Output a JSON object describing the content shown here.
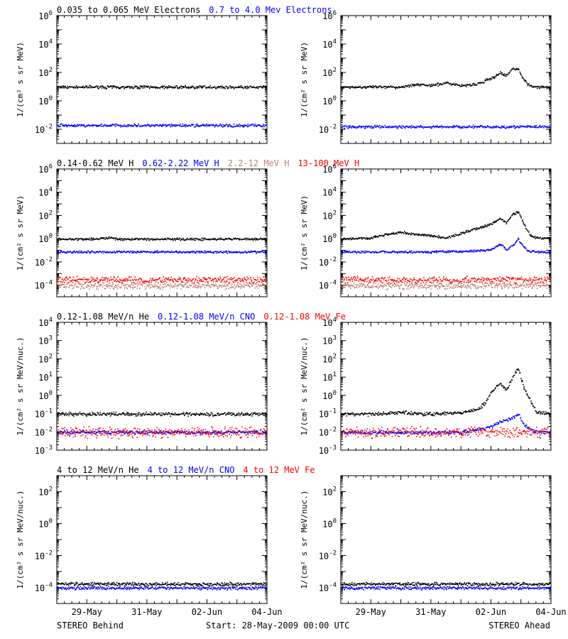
{
  "footer": {
    "left": "STEREO Behind",
    "center": "Start: 28-May-2009 00:00 UTC",
    "right": "STEREO Ahead"
  },
  "x_axis": {
    "range_days": [
      0,
      7
    ],
    "ticks": [
      {
        "label": "29-May",
        "day": 1.0
      },
      {
        "label": "31-May",
        "day": 3.0
      },
      {
        "label": "02-Jun",
        "day": 5.0
      },
      {
        "label": "04-Jun",
        "day": 7.0
      }
    ]
  },
  "rows": [
    {
      "titles": [
        {
          "text": "0.035 to 0.065 MeV Electrons",
          "color": "#000000"
        },
        {
          "text": "0.7 to 4.0 Mev Electrons",
          "color": "#0000ff"
        }
      ],
      "ylabel": "1/(cm² s sr MeV)",
      "ylog": [
        -3,
        6
      ],
      "yticks": [
        {
          "exp": "6"
        },
        {
          "exp": "4"
        },
        {
          "exp": "2"
        },
        {
          "exp": "0"
        },
        {
          "exp": "-2"
        }
      ]
    },
    {
      "titles": [
        {
          "text": "0.14-0.62 MeV H",
          "color": "#000000"
        },
        {
          "text": "0.62-2.22 MeV H",
          "color": "#0000ff"
        },
        {
          "text": "2.2-12 MeV H",
          "color": "#c08070"
        },
        {
          "text": "13-100 MeV H",
          "color": "#ff0000"
        }
      ],
      "ylabel": "1/(cm² s sr MeV)",
      "ylog": [
        -5,
        6
      ],
      "yticks": [
        {
          "exp": "6"
        },
        {
          "exp": "4"
        },
        {
          "exp": "2"
        },
        {
          "exp": "0"
        },
        {
          "exp": "-2"
        },
        {
          "exp": "-4"
        }
      ]
    },
    {
      "titles": [
        {
          "text": "0.12-1.08 MeV/n He",
          "color": "#000000"
        },
        {
          "text": "0.12-1.08 MeV/n CNO",
          "color": "#0000ff"
        },
        {
          "text": "0.12-1.08 MeV Fe",
          "color": "#ff0000"
        }
      ],
      "ylabel": "1/(cm² s sr MeV/nuc.)",
      "ylog": [
        -3,
        4
      ],
      "yticks": [
        {
          "exp": "4"
        },
        {
          "exp": "3"
        },
        {
          "exp": "2"
        },
        {
          "exp": "1"
        },
        {
          "exp": "0"
        },
        {
          "exp": "-1"
        },
        {
          "exp": "-2"
        },
        {
          "exp": "-3"
        }
      ]
    },
    {
      "titles": [
        {
          "text": "4 to 12 MeV/n He",
          "color": "#000000"
        },
        {
          "text": "4 to 12 MeV/n CNO",
          "color": "#0000ff"
        },
        {
          "text": "4 to 12 MeV Fe",
          "color": "#ff0000"
        }
      ],
      "ylabel": "1/(cm² s sr MeV/nuc.)",
      "ylog": [
        -5,
        3
      ],
      "yticks": [
        {
          "exp": "2"
        },
        {
          "exp": "0"
        },
        {
          "exp": "-2"
        },
        {
          "exp": "-4"
        }
      ]
    }
  ],
  "chart_data": [
    {
      "type": "scatter",
      "spacecraft": "STEREO Behind",
      "ylog": [
        -3,
        6
      ],
      "series": [
        {
          "name": "0.035 to 0.065 MeV Electrons",
          "color": "#000000",
          "x": [
            0,
            1,
            2,
            3,
            4,
            5,
            6,
            7
          ],
          "log10_y": [
            1.0,
            1.0,
            1.0,
            1.0,
            1.0,
            1.0,
            1.0,
            1.0
          ]
        },
        {
          "name": "0.7 to 4.0 Mev Electrons",
          "color": "#0000ff",
          "x": [
            0,
            1,
            2,
            3,
            4,
            5,
            6,
            7
          ],
          "log10_y": [
            -1.7,
            -1.7,
            -1.7,
            -1.7,
            -1.7,
            -1.7,
            -1.7,
            -1.7
          ]
        }
      ]
    },
    {
      "type": "scatter",
      "spacecraft": "STEREO Ahead",
      "ylog": [
        -3,
        6
      ],
      "series": [
        {
          "name": "0.035 to 0.065 MeV Electrons",
          "color": "#000000",
          "x": [
            0,
            1,
            2,
            2.5,
            3,
            3.5,
            4,
            4.5,
            5,
            5.3,
            5.5,
            5.7,
            5.9,
            6.0,
            6.2,
            6.5,
            7
          ],
          "log10_y": [
            1.0,
            1.0,
            1.0,
            1.2,
            1.1,
            1.3,
            1.1,
            1.2,
            1.6,
            2.0,
            1.8,
            2.3,
            2.3,
            1.8,
            1.2,
            1.0,
            1.0
          ]
        },
        {
          "name": "0.7 to 4.0 Mev Electrons",
          "color": "#0000ff",
          "x": [
            0,
            1,
            2,
            3,
            4,
            5,
            6,
            7
          ],
          "log10_y": [
            -1.8,
            -1.8,
            -1.8,
            -1.8,
            -1.8,
            -1.8,
            -1.8,
            -1.8
          ]
        }
      ]
    },
    {
      "type": "scatter",
      "spacecraft": "STEREO Behind",
      "ylog": [
        -5,
        6
      ],
      "series": [
        {
          "name": "0.14-0.62 MeV H",
          "color": "#000000",
          "x": [
            0,
            1,
            1.5,
            1.8,
            2,
            3,
            4,
            5,
            6,
            7
          ],
          "log10_y": [
            0.0,
            0.0,
            0.05,
            0.15,
            0.0,
            0.0,
            0.0,
            0.0,
            0.0,
            0.0
          ]
        },
        {
          "name": "0.62-2.22 MeV H",
          "color": "#0000ff",
          "x": [
            0,
            1,
            2,
            3,
            4,
            5,
            6,
            7
          ],
          "log10_y": [
            -1.1,
            -1.1,
            -1.1,
            -1.1,
            -1.1,
            -1.1,
            -1.1,
            -1.1
          ]
        },
        {
          "name": "2.2-12 MeV H",
          "color": "#c08070",
          "x": [
            0,
            7
          ],
          "log10_y": [
            -4.0,
            -4.0
          ]
        },
        {
          "name": "13-100 MeV H",
          "color": "#ff0000",
          "x": [
            0,
            7
          ],
          "log10_y": [
            -3.5,
            -3.5
          ]
        }
      ]
    },
    {
      "type": "scatter",
      "spacecraft": "STEREO Ahead",
      "ylog": [
        -5,
        6
      ],
      "series": [
        {
          "name": "0.14-0.62 MeV H",
          "color": "#000000",
          "x": [
            0,
            1,
            1.5,
            2,
            2.5,
            3,
            3.5,
            4,
            4.5,
            5,
            5.3,
            5.5,
            5.7,
            5.9,
            6.0,
            6.1,
            6.3,
            6.5,
            7
          ],
          "log10_y": [
            0.0,
            0.1,
            0.4,
            0.6,
            0.4,
            0.3,
            0.1,
            0.5,
            0.9,
            1.3,
            1.8,
            1.4,
            2.1,
            2.4,
            1.8,
            1.2,
            0.3,
            0.1,
            0.1
          ]
        },
        {
          "name": "0.62-2.22 MeV H",
          "color": "#0000ff",
          "x": [
            0,
            1,
            2,
            3,
            4,
            4.5,
            5,
            5.3,
            5.5,
            5.7,
            5.9,
            6.0,
            6.2,
            6.5,
            7
          ],
          "log10_y": [
            -1.1,
            -1.1,
            -1.1,
            -1.1,
            -1.05,
            -1.0,
            -0.9,
            -0.4,
            -0.9,
            -0.6,
            0.0,
            -0.4,
            -1.0,
            -1.1,
            -1.1
          ]
        },
        {
          "name": "2.2-12 MeV H",
          "color": "#c08070",
          "x": [
            0,
            7
          ],
          "log10_y": [
            -4.0,
            -4.0
          ]
        },
        {
          "name": "13-100 MeV H",
          "color": "#ff0000",
          "x": [
            0,
            7
          ],
          "log10_y": [
            -3.5,
            -3.5
          ]
        }
      ]
    },
    {
      "type": "scatter",
      "spacecraft": "STEREO Behind",
      "ylog": [
        -3,
        4
      ],
      "series": [
        {
          "name": "0.12-1.08 MeV/n He",
          "color": "#000000",
          "x": [
            0,
            7
          ],
          "log10_y": [
            -1.0,
            -1.0
          ]
        },
        {
          "name": "0.12-1.08 MeV/n CNO",
          "color": "#0000ff",
          "x": [
            0,
            7
          ],
          "log10_y": [
            -2.0,
            -2.0
          ]
        },
        {
          "name": "0.12-1.08 MeV Fe",
          "color": "#ff0000",
          "x": [
            0,
            7
          ],
          "log10_y": [
            -2.0,
            -2.0
          ]
        }
      ]
    },
    {
      "type": "scatter",
      "spacecraft": "STEREO Ahead",
      "ylog": [
        -3,
        4
      ],
      "series": [
        {
          "name": "0.12-1.08 MeV/n He",
          "color": "#000000",
          "x": [
            0,
            1,
            2,
            3,
            4,
            4.5,
            4.8,
            5.0,
            5.3,
            5.5,
            5.7,
            5.9,
            6.0,
            6.1,
            6.3,
            6.5,
            7
          ],
          "log10_y": [
            -1.0,
            -1.0,
            -0.9,
            -1.0,
            -0.9,
            -0.8,
            -0.4,
            0.2,
            0.7,
            0.3,
            1.0,
            1.5,
            0.9,
            0.4,
            -0.3,
            -0.9,
            -1.0
          ]
        },
        {
          "name": "0.12-1.08 MeV/n CNO",
          "color": "#0000ff",
          "x": [
            0,
            1,
            2,
            3,
            4,
            5,
            5.3,
            5.6,
            5.9,
            6.1,
            6.5,
            7
          ],
          "log10_y": [
            -2.0,
            -2.0,
            -2.0,
            -2.0,
            -2.0,
            -1.7,
            -1.4,
            -1.3,
            -1.0,
            -1.6,
            -2.0,
            -2.0
          ]
        },
        {
          "name": "0.12-1.08 MeV Fe",
          "color": "#ff0000",
          "x": [
            0,
            7
          ],
          "log10_y": [
            -2.0,
            -2.0
          ]
        }
      ]
    },
    {
      "type": "scatter",
      "spacecraft": "STEREO Behind",
      "ylog": [
        -5,
        3
      ],
      "series": [
        {
          "name": "4 to 12 MeV/n He",
          "color": "#000000",
          "x": [
            0,
            7
          ],
          "log10_y": [
            -3.75,
            -3.75
          ]
        },
        {
          "name": "4 to 12 MeV/n CNO",
          "color": "#0000ff",
          "x": [
            0,
            7
          ],
          "log10_y": [
            -4.0,
            -4.0
          ]
        },
        {
          "name": "4 to 12 MeV Fe",
          "color": "#ff0000",
          "x": [],
          "log10_y": []
        }
      ]
    },
    {
      "type": "scatter",
      "spacecraft": "STEREO Ahead",
      "ylog": [
        -5,
        3
      ],
      "series": [
        {
          "name": "4 to 12 MeV/n He",
          "color": "#000000",
          "x": [
            0,
            7
          ],
          "log10_y": [
            -3.75,
            -3.75
          ]
        },
        {
          "name": "4 to 12 MeV/n CNO",
          "color": "#0000ff",
          "x": [
            0,
            7
          ],
          "log10_y": [
            -4.0,
            -4.0
          ]
        },
        {
          "name": "4 to 12 MeV Fe",
          "color": "#ff0000",
          "x": [],
          "log10_y": []
        }
      ]
    }
  ]
}
